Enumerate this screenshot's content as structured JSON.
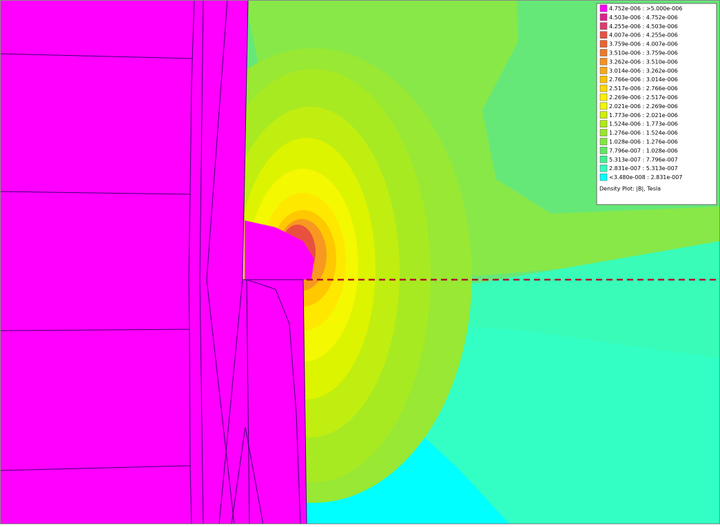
{
  "legend": {
    "entries": [
      {
        "label": "4.752e-006 : >5.000e-006",
        "color": "#ff00ff"
      },
      {
        "label": "4.503e-006 : 4.752e-006",
        "color": "#e0208f"
      },
      {
        "label": "4.255e-006 : 4.503e-006",
        "color": "#e03a70"
      },
      {
        "label": "4.007e-006 : 4.255e-006",
        "color": "#e85040"
      },
      {
        "label": "3.759e-006 : 4.007e-006",
        "color": "#f06030"
      },
      {
        "label": "3.510e-006 : 3.759e-006",
        "color": "#f07828"
      },
      {
        "label": "3.262e-006 : 3.510e-006",
        "color": "#f89020"
      },
      {
        "label": "3.014e-006 : 3.262e-006",
        "color": "#f8a818"
      },
      {
        "label": "2.766e-006 : 3.014e-006",
        "color": "#ffc000"
      },
      {
        "label": "2.517e-006 : 2.766e-006",
        "color": "#ffd800"
      },
      {
        "label": "2.269e-006 : 2.517e-006",
        "color": "#fff000"
      },
      {
        "label": "2.021e-006 : 2.269e-006",
        "color": "#f0f800"
      },
      {
        "label": "1.773e-006 : 2.021e-006",
        "color": "#d0f000"
      },
      {
        "label": "1.524e-006 : 1.773e-006",
        "color": "#b0ec10"
      },
      {
        "label": "1.276e-006 : 1.524e-006",
        "color": "#98e828"
      },
      {
        "label": "1.028e-006 : 1.276e-006",
        "color": "#80e840"
      },
      {
        "label": "7.796e-007 : 1.028e-006",
        "color": "#60e860"
      },
      {
        "label": "5.313e-007 : 7.796e-007",
        "color": "#40f090"
      },
      {
        "label": "2.831e-007 : 5.313e-007",
        "color": "#30ffc0"
      },
      {
        "label": "<3.480e-008 : 2.831e-007",
        "color": "#00ffff"
      }
    ],
    "caption": "Density Plot: |B|, Tesla"
  }
}
